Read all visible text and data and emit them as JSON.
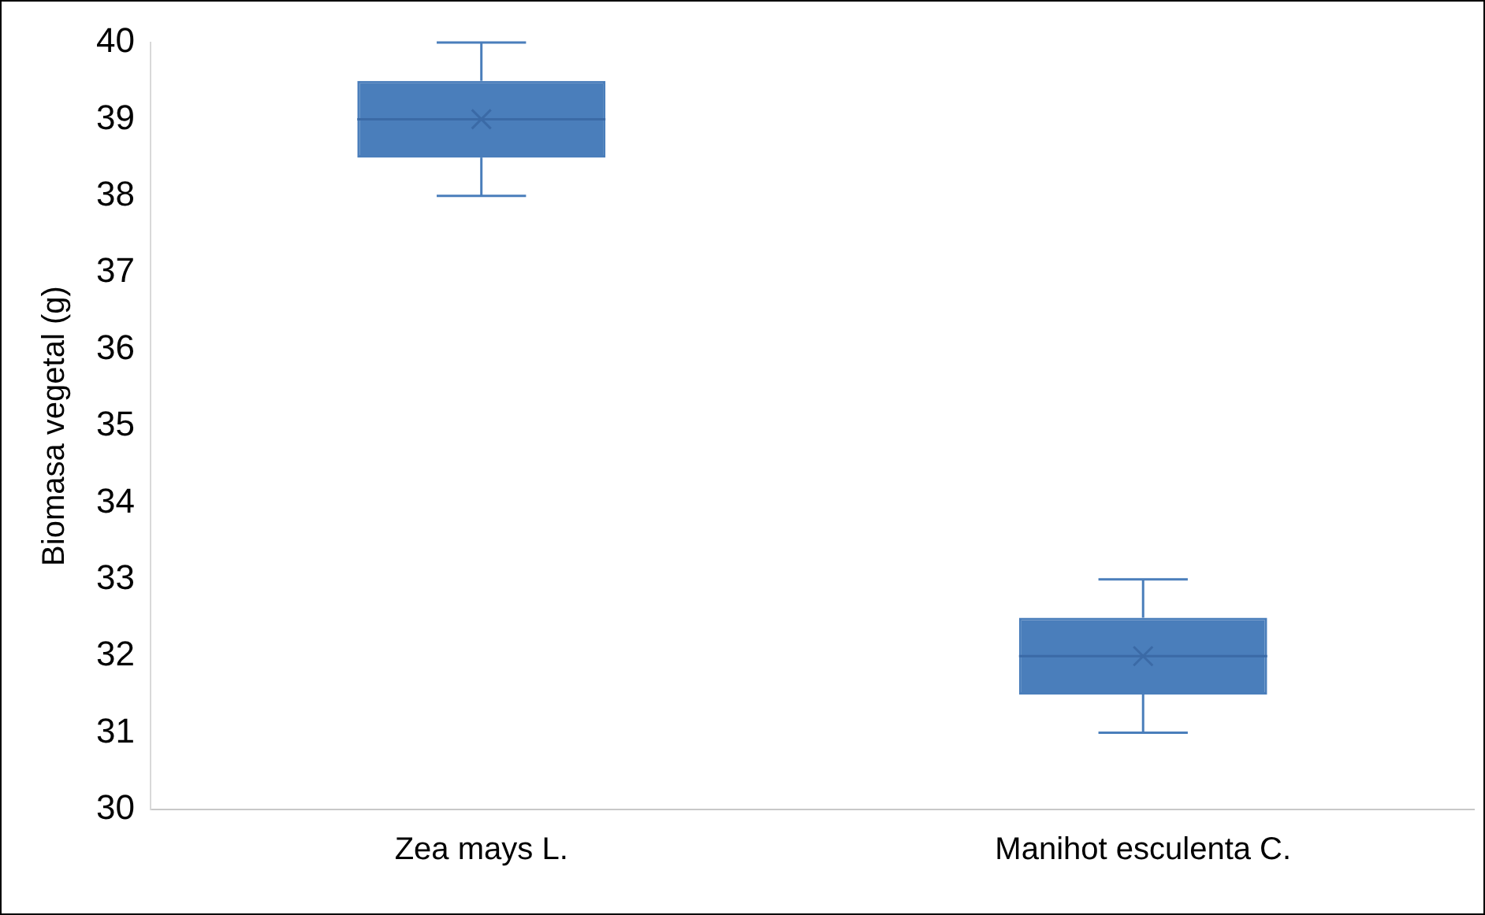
{
  "chart_data": {
    "type": "box",
    "ylabel": "Biomasa vegetal (g)",
    "categories": [
      "Zea mays L.",
      "Manihot esculenta C."
    ],
    "boxes": [
      {
        "low": 38,
        "q1": 38.5,
        "median": 39,
        "q3": 39.5,
        "high": 40,
        "mean": 39
      },
      {
        "low": 31,
        "q1": 31.5,
        "median": 32,
        "q3": 32.5,
        "high": 33,
        "mean": 32
      }
    ],
    "color": "#4a7ebb",
    "ylim": [
      30,
      40
    ],
    "yticks": [
      30,
      31,
      32,
      33,
      34,
      35,
      36,
      37,
      38,
      39,
      40
    ]
  }
}
